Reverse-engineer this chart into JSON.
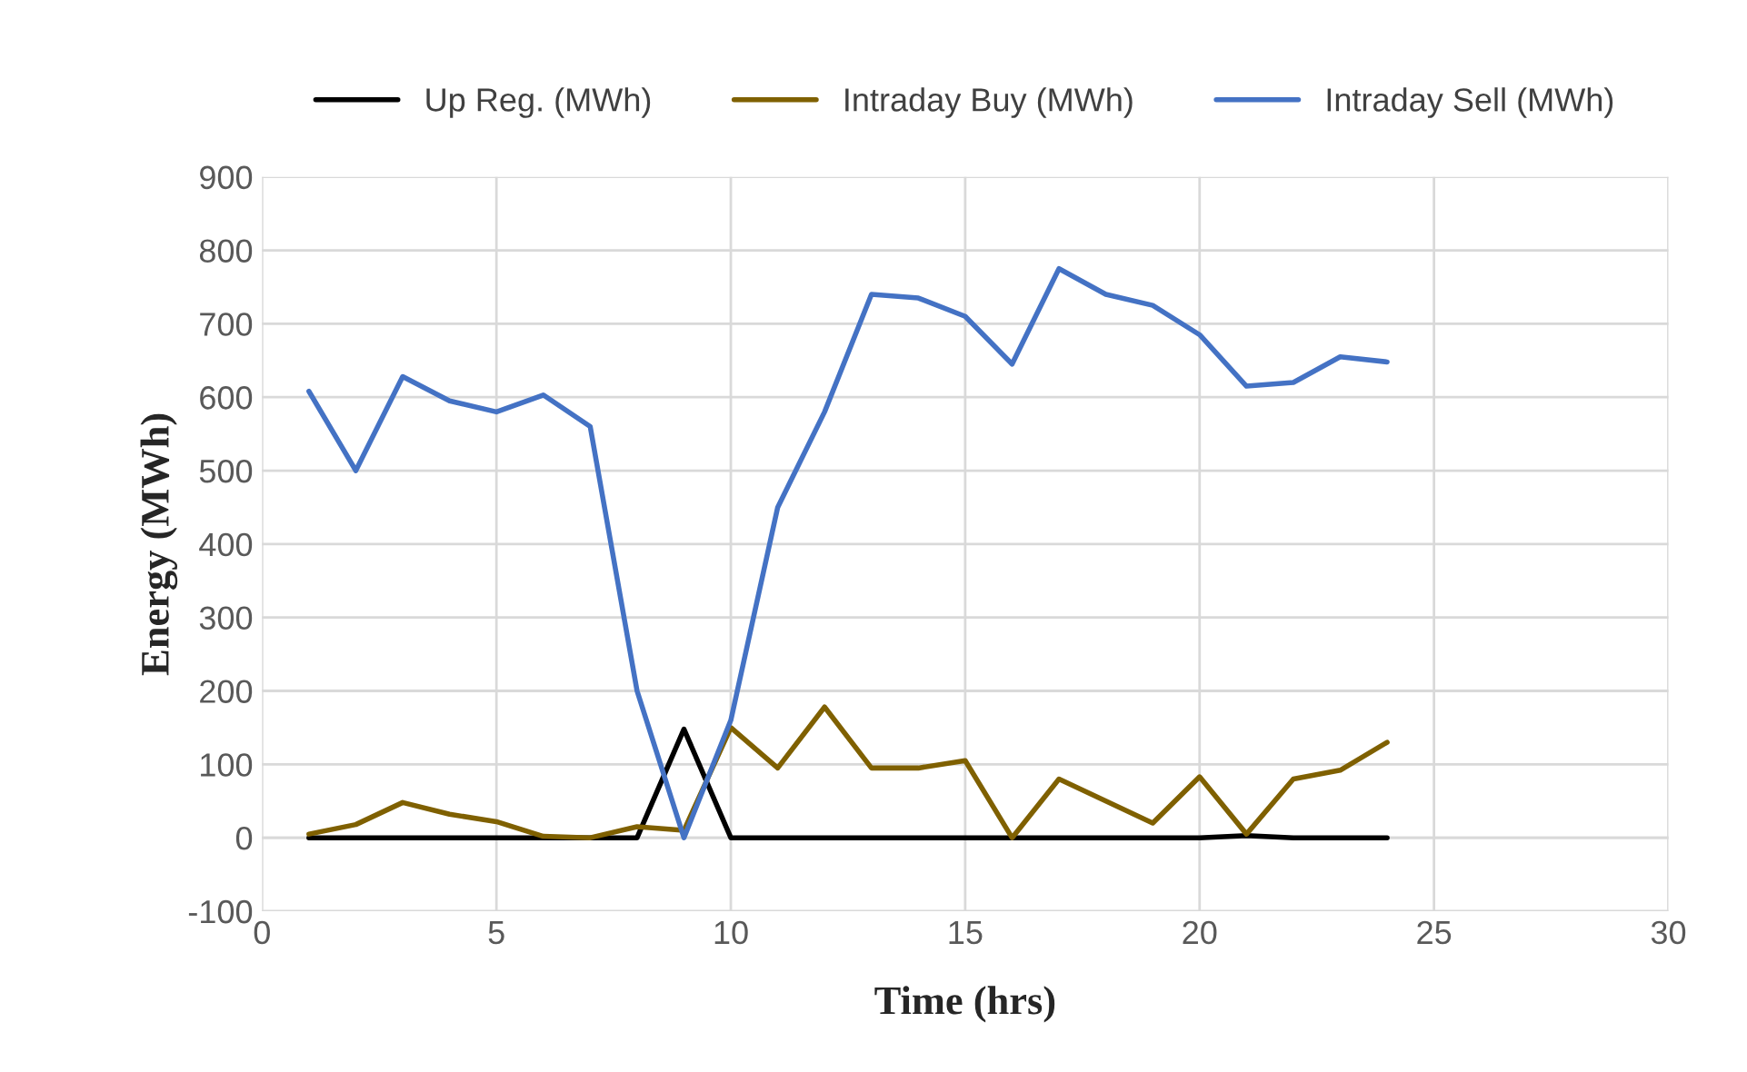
{
  "chart_data": {
    "type": "line",
    "xlabel": "Time (hrs)",
    "ylabel": "Energy (MWh)",
    "x": [
      1,
      2,
      3,
      4,
      5,
      6,
      7,
      8,
      9,
      10,
      11,
      12,
      13,
      14,
      15,
      16,
      17,
      18,
      19,
      20,
      21,
      22,
      23,
      24
    ],
    "series": [
      {
        "name": "Up Reg. (MWh)",
        "color": "#000000",
        "values": [
          0,
          0,
          0,
          0,
          0,
          0,
          0,
          0,
          148,
          0,
          0,
          0,
          0,
          0,
          0,
          0,
          0,
          0,
          0,
          0,
          3,
          0,
          0,
          0
        ]
      },
      {
        "name": "Intraday Buy (MWh)",
        "color": "#7f6000",
        "values": [
          5,
          18,
          48,
          32,
          22,
          2,
          0,
          15,
          10,
          150,
          95,
          178,
          95,
          95,
          105,
          0,
          80,
          50,
          20,
          83,
          5,
          80,
          92,
          130
        ]
      },
      {
        "name": "Intraday Sell (MWh)",
        "color": "#4472c4",
        "values": [
          608,
          500,
          628,
          595,
          580,
          603,
          560,
          200,
          0,
          160,
          450,
          580,
          740,
          735,
          710,
          645,
          775,
          740,
          725,
          685,
          615,
          620,
          655,
          648
        ]
      }
    ],
    "xlim": [
      0,
      30
    ],
    "xticks": [
      0,
      5,
      10,
      15,
      20,
      25,
      30
    ],
    "ylim": [
      -100,
      900
    ],
    "yticks": [
      -100,
      0,
      100,
      200,
      300,
      400,
      500,
      600,
      700,
      800,
      900
    ],
    "grid": true,
    "legend": "top",
    "marker": "none",
    "line_style": "solid"
  }
}
